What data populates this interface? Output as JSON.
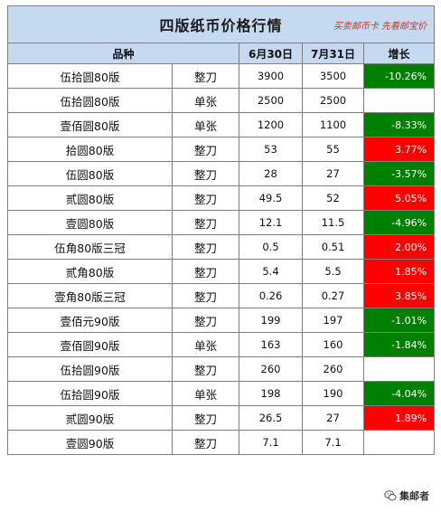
{
  "title": "四版纸币价格行情",
  "slogan": "买卖邮币卡 先看邮宝价",
  "headers": {
    "variety": "品种",
    "date1": "6月30日",
    "date2": "7月31日",
    "growth": "增长"
  },
  "rows": [
    {
      "name": "伍拾圆80版",
      "unit": "整刀",
      "p1": "3900",
      "p2": "3500",
      "growth": "-10.26%",
      "trend": "down"
    },
    {
      "name": "伍拾圆80版",
      "unit": "单张",
      "p1": "2500",
      "p2": "2500",
      "growth": "",
      "trend": "none"
    },
    {
      "name": "壹佰圆80版",
      "unit": "单张",
      "p1": "1200",
      "p2": "1100",
      "growth": "-8.33%",
      "trend": "down"
    },
    {
      "name": "拾圆80版",
      "unit": "整刀",
      "p1": "53",
      "p2": "55",
      "growth": "3.77%",
      "trend": "up"
    },
    {
      "name": "伍圆80版",
      "unit": "整刀",
      "p1": "28",
      "p2": "27",
      "growth": "-3.57%",
      "trend": "down"
    },
    {
      "name": "贰圆80版",
      "unit": "整刀",
      "p1": "49.5",
      "p2": "52",
      "growth": "5.05%",
      "trend": "up"
    },
    {
      "name": "壹圆80版",
      "unit": "整刀",
      "p1": "12.1",
      "p2": "11.5",
      "growth": "-4.96%",
      "trend": "down"
    },
    {
      "name": "伍角80版三冠",
      "unit": "整刀",
      "p1": "0.5",
      "p2": "0.51",
      "growth": "2.00%",
      "trend": "up"
    },
    {
      "name": "贰角80版",
      "unit": "整刀",
      "p1": "5.4",
      "p2": "5.5",
      "growth": "1.85%",
      "trend": "up"
    },
    {
      "name": "壹角80版三冠",
      "unit": "整刀",
      "p1": "0.26",
      "p2": "0.27",
      "growth": "3.85%",
      "trend": "up"
    },
    {
      "name": "壹佰元90版",
      "unit": "整刀",
      "p1": "199",
      "p2": "197",
      "growth": "-1.01%",
      "trend": "down"
    },
    {
      "name": "壹佰圆90版",
      "unit": "单张",
      "p1": "163",
      "p2": "160",
      "growth": "-1.84%",
      "trend": "down"
    },
    {
      "name": "伍拾圆90版",
      "unit": "整刀",
      "p1": "260",
      "p2": "260",
      "growth": "",
      "trend": "none"
    },
    {
      "name": "伍拾圆90版",
      "unit": "单张",
      "p1": "198",
      "p2": "190",
      "growth": "-4.04%",
      "trend": "down"
    },
    {
      "name": "贰圆90版",
      "unit": "整刀",
      "p1": "26.5",
      "p2": "27",
      "growth": "1.89%",
      "trend": "up"
    },
    {
      "name": "壹圆90版",
      "unit": "整刀",
      "p1": "7.1",
      "p2": "7.1",
      "growth": "",
      "trend": "none"
    }
  ],
  "watermark": {
    "icon": "wechat-icon",
    "text": "集邮者"
  },
  "colors": {
    "header_bg": "#c5d9f1",
    "up": "#ff0000",
    "down": "#008000",
    "slogan": "#c0392b"
  }
}
